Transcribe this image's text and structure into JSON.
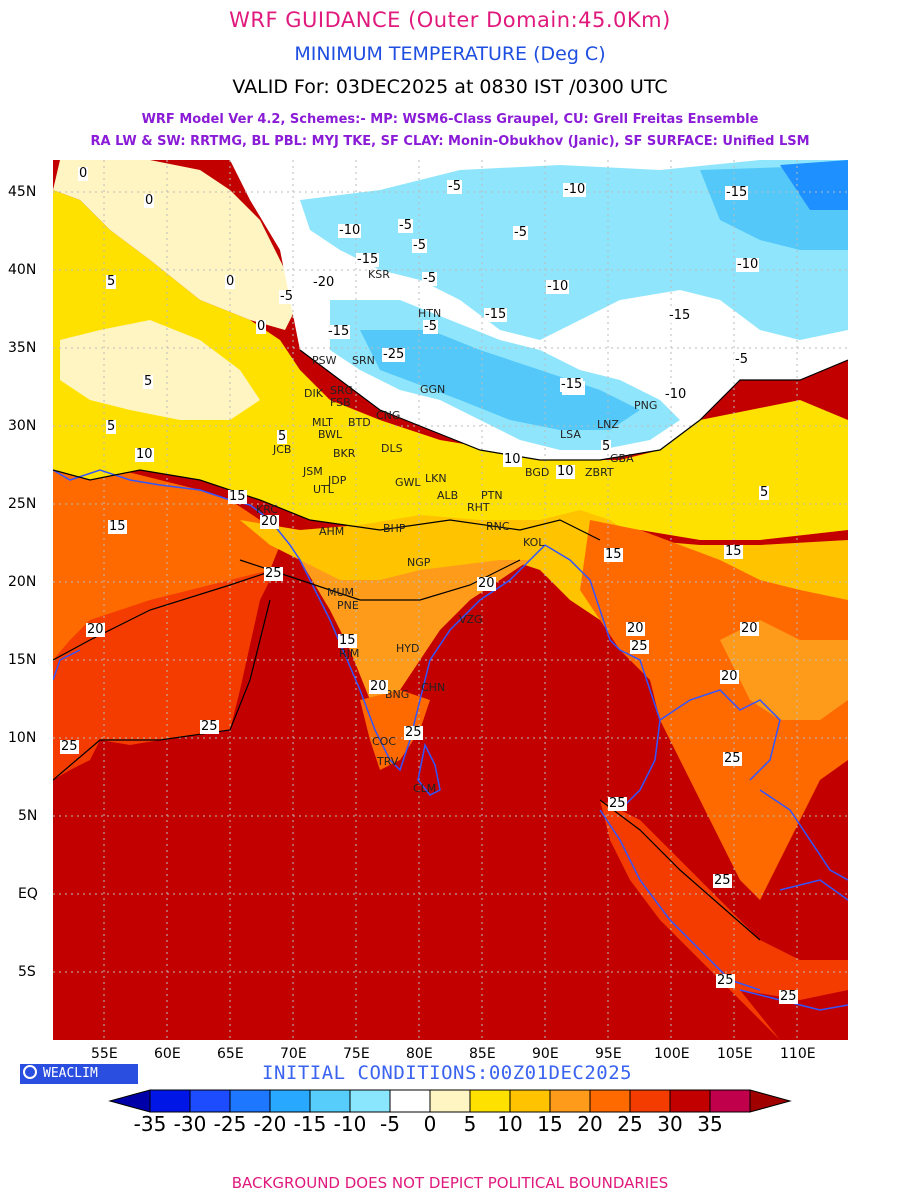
{
  "header": {
    "title": "WRF GUIDANCE (Outer Domain:45.0Km)",
    "variable": "MINIMUM TEMPERATURE (Deg C)",
    "valid": "VALID For: 03DEC2025 at 0830 IST /0300 UTC",
    "model_line1": "WRF Model Ver 4.2, Schemes:- MP: WSM6-Class Graupel, CU: Grell Freitas Ensemble",
    "model_line2": "RA LW & SW: RRTMG, BL PBL: MYJ TKE, SF CLAY: Monin-Obukhov (Janic), SF SURFACE: Unified LSM"
  },
  "map": {
    "lat_labels": [
      "45N",
      "40N",
      "35N",
      "30N",
      "25N",
      "20N",
      "15N",
      "10N",
      "5N",
      "EQ",
      "5S"
    ],
    "lon_labels": [
      "55E",
      "60E",
      "65E",
      "70E",
      "75E",
      "80E",
      "85E",
      "90E",
      "95E",
      "100E",
      "105E",
      "110E"
    ],
    "grid": "dotted",
    "colors": {
      "n15": "#1e90ff",
      "n10": "#54c8f8",
      "n5": "#8fe6fc",
      "zero": "#ffffff",
      "p0": "#fff5c2",
      "p5": "#ffe100",
      "p10": "#ffc300",
      "p15": "#ff9b1a",
      "p20": "#ff6a00",
      "p25": "#f53c00",
      "p30": "#c20000",
      "border": "#3355ff"
    },
    "stations": [
      {
        "name": "KSR"
      },
      {
        "name": "HTN"
      },
      {
        "name": "SRN"
      },
      {
        "name": "GGN"
      },
      {
        "name": "PSW"
      },
      {
        "name": "DIK"
      },
      {
        "name": "SRG"
      },
      {
        "name": "FSB"
      },
      {
        "name": "BWL"
      },
      {
        "name": "MLT"
      },
      {
        "name": "BTD"
      },
      {
        "name": "CNG"
      },
      {
        "name": "LSA"
      },
      {
        "name": "LNZ"
      },
      {
        "name": "PNG"
      },
      {
        "name": "JCB"
      },
      {
        "name": "BKR"
      },
      {
        "name": "DLS"
      },
      {
        "name": "JSM"
      },
      {
        "name": "JDP"
      },
      {
        "name": "UTL"
      },
      {
        "name": "GWL"
      },
      {
        "name": "LKN"
      },
      {
        "name": "ALB"
      },
      {
        "name": "PTN"
      },
      {
        "name": "RHT"
      },
      {
        "name": "KRC"
      },
      {
        "name": "AHM"
      },
      {
        "name": "BHP"
      },
      {
        "name": "RNC"
      },
      {
        "name": "KOL"
      },
      {
        "name": "NGP"
      },
      {
        "name": "MUM"
      },
      {
        "name": "PNE"
      },
      {
        "name": "HYD"
      },
      {
        "name": "VZG"
      },
      {
        "name": "RJM"
      },
      {
        "name": "CHN"
      },
      {
        "name": "BNG"
      },
      {
        "name": "COC"
      },
      {
        "name": "TRV"
      },
      {
        "name": "CLM"
      },
      {
        "name": "BGD"
      },
      {
        "name": "GBA"
      },
      {
        "name": "ZBRT"
      }
    ],
    "contour_labels": [
      {
        "v": "-5"
      },
      {
        "v": "-10"
      },
      {
        "v": "-15"
      },
      {
        "v": "-20"
      },
      {
        "v": "0"
      },
      {
        "v": "5"
      },
      {
        "v": "10"
      },
      {
        "v": "15"
      },
      {
        "v": "20"
      },
      {
        "v": "25"
      },
      {
        "v": "-25"
      }
    ]
  },
  "logo": {
    "text": "WEACLIM",
    "icon": "weaclim-logo-icon"
  },
  "initial": "INITIAL CONDITIONS:00Z01DEC2025",
  "colorbar": {
    "labels": [
      "-35",
      "-30",
      "-25",
      "-20",
      "-15",
      "-10",
      "-5",
      "0",
      "5",
      "10",
      "15",
      "20",
      "25",
      "30",
      "35"
    ],
    "colors": [
      "#0000a8",
      "#0016e6",
      "#1d4cff",
      "#1e78ff",
      "#29a8ff",
      "#56cdfa",
      "#8ae6fd",
      "#ffffff",
      "#fff5c2",
      "#ffe100",
      "#ffc300",
      "#ff9b1a",
      "#ff6a00",
      "#f53c00",
      "#c20000",
      "#c0004a",
      "#a00000"
    ]
  },
  "footer": "BACKGROUND DOES NOT DEPICT POLITICAL BOUNDARIES"
}
